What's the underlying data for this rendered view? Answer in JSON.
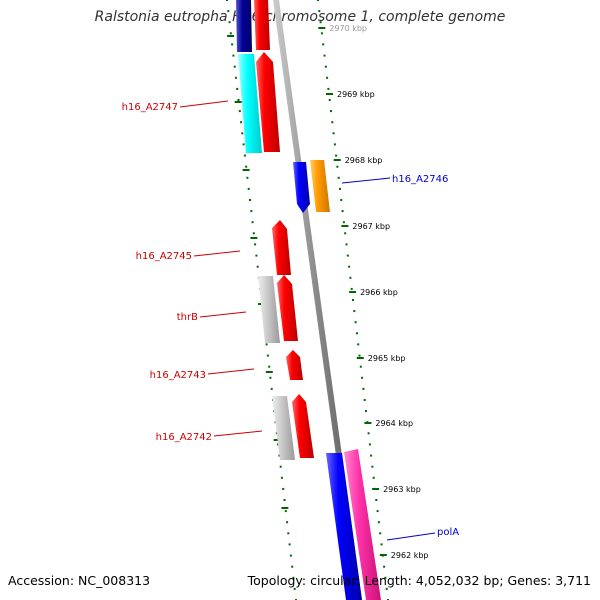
{
  "title": "Ralstonia eutropha H16 chromosome 1, complete genome",
  "footer": {
    "accession": "Accession: NC_008313",
    "stats": "Topology: circular; Length: 4,052,032 bp; Genes: 3,711"
  },
  "ticks": [
    "2970 kbp",
    "2969 kbp",
    "2968 kbp",
    "2967 kbp",
    "2966 kbp",
    "2965 kbp",
    "2964 kbp",
    "2963 kbp",
    "2962 kbp"
  ],
  "genes": [
    {
      "label": "h16_A2747",
      "color": "#cc0000"
    },
    {
      "label": "h16_A2746",
      "color": "#0000cc"
    },
    {
      "label": "h16_A2745",
      "color": "#cc0000"
    },
    {
      "label": "thrB",
      "color": "#cc0000"
    },
    {
      "label": "h16_A2743",
      "color": "#cc0000"
    },
    {
      "label": "h16_A2742",
      "color": "#cc0000"
    },
    {
      "label": "polA",
      "color": "#0000cc"
    }
  ],
  "colors": {
    "cds_red": "#ff0000",
    "cds_blue": "#0000ff",
    "cds_cyan": "#00ffff",
    "cds_orange": "#ff9900",
    "cds_pink": "#ff33aa",
    "cds_navy": "#000099",
    "feature_gray": "#bbbbbb",
    "backbone": "#888888",
    "tick_green": "#006600"
  }
}
